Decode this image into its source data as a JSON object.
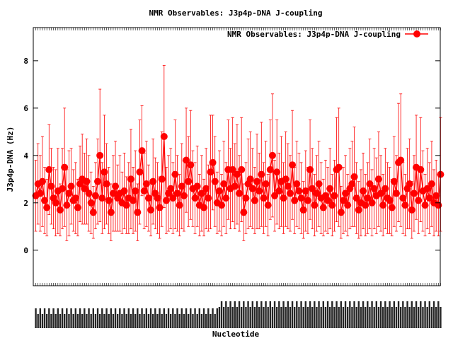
{
  "chart_data": {
    "type": "scatter",
    "title": "NMR Observables: J3p4p-DNA J-coupling",
    "xlabel": "Nucleotide",
    "ylabel": "J3p4p-DNA (Hz)",
    "ylim": [
      -1.5,
      9.4
    ],
    "yticks": [
      0,
      2,
      4,
      6,
      8
    ],
    "legend": {
      "label": "NMR Observables: J3p4p-DNA J-coupling",
      "position": "top-right"
    },
    "series_color": "#ff0000",
    "x_tick_labels_legible": false,
    "grid": false,
    "series": [
      {
        "name": "NMR Observables: J3p4p-DNA J-coupling",
        "values": [
          2.3,
          2.8,
          2.4,
          2.9,
          2.1,
          1.8,
          3.4,
          2.7,
          2.2,
          2.0,
          2.5,
          1.7,
          2.6,
          3.5,
          1.9,
          2.4,
          2.7,
          2.1,
          2.2,
          1.8,
          2.8,
          3.0,
          2.6,
          2.9,
          2.4,
          2.0,
          1.6,
          2.3,
          2.9,
          4.0,
          2.2,
          3.3,
          2.8,
          2.1,
          1.6,
          2.4,
          2.7,
          2.2,
          2.4,
          2.0,
          2.5,
          1.9,
          2.2,
          3.0,
          2.1,
          2.5,
          1.6,
          3.3,
          4.2,
          2.5,
          2.8,
          2.2,
          1.7,
          2.9,
          2.4,
          2.2,
          1.8,
          3.0,
          4.8,
          2.1,
          2.4,
          2.6,
          2.2,
          3.2,
          2.4,
          1.9,
          2.7,
          2.3,
          3.8,
          2.9,
          3.6,
          2.6,
          2.2,
          2.7,
          1.9,
          2.4,
          1.8,
          2.6,
          2.2,
          3.3,
          3.7,
          2.9,
          2.0,
          2.5,
          1.9,
          2.8,
          2.2,
          3.4,
          2.6,
          3.4,
          2.7,
          3.2,
          2.4,
          3.4,
          1.6,
          2.2,
          2.8,
          3.0,
          2.6,
          2.1,
          2.9,
          2.5,
          3.2,
          2.2,
          2.8,
          1.9,
          3.4,
          4.0,
          2.3,
          3.3,
          2.5,
          2.9,
          2.2,
          3.0,
          2.7,
          2.4,
          3.6,
          2.1,
          2.8,
          2.5,
          2.2,
          1.7,
          2.5,
          2.1,
          3.4,
          2.6,
          1.9,
          2.4,
          2.8,
          2.2,
          1.8,
          2.3,
          2.1,
          2.6,
          1.9,
          2.3,
          3.4,
          3.5,
          1.6,
          2.1,
          2.4,
          1.9,
          2.6,
          2.8,
          3.1,
          2.2,
          1.7,
          2.0,
          2.5,
          1.9,
          2.2,
          2.8,
          2.0,
          2.6,
          2.3,
          3.0,
          2.4,
          1.9,
          2.6,
          2.2,
          2.1,
          1.8,
          2.9,
          2.4,
          3.7,
          3.8,
          2.2,
          1.9,
          2.6,
          2.8,
          1.7,
          2.4,
          3.5,
          2.1,
          3.4,
          2.5,
          1.9,
          2.6,
          2.2,
          2.8,
          2.0,
          2.3,
          1.9,
          3.2
        ],
        "errors": [
          1.5,
          1.7,
          1.6,
          1.9,
          1.4,
          1.2,
          1.9,
          1.6,
          1.3,
          1.4,
          1.8,
          1.1,
          1.7,
          2.5,
          1.5,
          1.8,
          1.6,
          1.3,
          1.5,
          1.2,
          1.6,
          1.9,
          1.5,
          1.8,
          1.6,
          1.3,
          1.1,
          1.4,
          1.8,
          2.8,
          1.5,
          2.4,
          1.7,
          1.4,
          1.2,
          1.6,
          1.9,
          1.4,
          1.6,
          1.3,
          1.6,
          1.2,
          1.5,
          2.1,
          1.4,
          1.7,
          1.2,
          2.2,
          1.9,
          1.6,
          1.8,
          1.4,
          1.1,
          1.8,
          1.5,
          1.5,
          1.3,
          2.0,
          3.0,
          1.4,
          1.6,
          1.7,
          1.5,
          2.3,
          1.6,
          1.3,
          1.8,
          1.5,
          2.2,
          1.9,
          2.3,
          1.6,
          1.5,
          1.7,
          1.3,
          1.6,
          1.2,
          1.7,
          1.4,
          2.4,
          2.0,
          1.9,
          1.3,
          1.7,
          1.3,
          1.8,
          1.5,
          2.1,
          1.7,
          2.2,
          1.8,
          2.1,
          1.6,
          2.2,
          1.2,
          1.5,
          1.9,
          2.0,
          1.7,
          1.4,
          2.0,
          1.6,
          2.2,
          1.5,
          1.8,
          1.3,
          2.1,
          2.6,
          1.5,
          2.2,
          1.6,
          1.9,
          1.5,
          2.0,
          1.8,
          1.6,
          2.3,
          1.4,
          1.8,
          1.6,
          1.5,
          1.2,
          1.7,
          1.4,
          2.1,
          1.7,
          1.3,
          1.6,
          1.8,
          1.5,
          1.2,
          1.5,
          1.4,
          1.7,
          1.3,
          1.5,
          2.2,
          2.5,
          1.1,
          1.4,
          1.6,
          1.3,
          1.7,
          1.8,
          2.1,
          1.5,
          1.2,
          1.4,
          1.6,
          1.3,
          1.5,
          1.9,
          1.4,
          1.7,
          1.6,
          2.0,
          1.6,
          1.3,
          1.7,
          1.5,
          1.4,
          1.2,
          1.9,
          1.6,
          2.5,
          2.8,
          1.5,
          1.3,
          1.7,
          1.9,
          1.2,
          1.6,
          2.2,
          1.4,
          2.2,
          1.7,
          1.3,
          1.7,
          1.5,
          1.8,
          1.4,
          1.5,
          1.3,
          2.4
        ]
      }
    ]
  }
}
